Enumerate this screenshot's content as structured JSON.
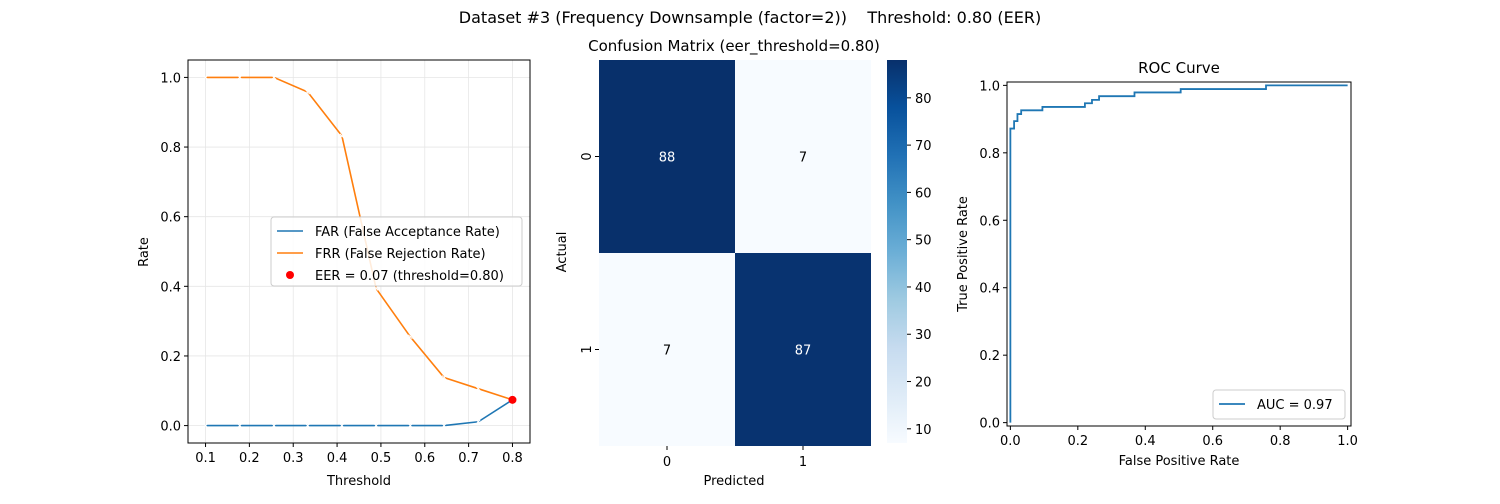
{
  "suptitle": "Dataset #3 (Frequency Downsample (factor=2))    Threshold: 0.80 (EER)",
  "chart_data": [
    {
      "type": "line",
      "title": "",
      "xlabel": "Threshold",
      "ylabel": "Rate",
      "xlim": [
        0.06,
        0.84
      ],
      "ylim": [
        -0.05,
        1.05
      ],
      "xticks": [
        "0.1",
        "0.2",
        "0.3",
        "0.4",
        "0.5",
        "0.6",
        "0.7",
        "0.8"
      ],
      "yticks": [
        "0.0",
        "0.2",
        "0.4",
        "0.6",
        "0.8",
        "1.0"
      ],
      "grid": true,
      "legend_position": "center-right",
      "x": [
        0.1,
        0.178,
        0.256,
        0.333,
        0.411,
        0.489,
        0.567,
        0.644,
        0.722,
        0.8
      ],
      "series": [
        {
          "name": "FAR (False Acceptance Rate)",
          "color": "#1f77b4",
          "marker": "x",
          "values": [
            0.0,
            0.0,
            0.0,
            0.0,
            0.0,
            0.0,
            0.0,
            0.0,
            0.011,
            0.074
          ]
        },
        {
          "name": "FRR (False Rejection Rate)",
          "color": "#ff7f0e",
          "marker": "x",
          "values": [
            1.0,
            1.0,
            1.0,
            0.958,
            0.832,
            0.394,
            0.255,
            0.138,
            0.106,
            0.074
          ]
        }
      ],
      "points": [
        {
          "name": "EER = 0.07 (threshold=0.80)",
          "x": 0.8,
          "y": 0.074,
          "color": "#ff0000"
        }
      ]
    },
    {
      "type": "heatmap",
      "title": "Confusion Matrix (eer_threshold=0.80)",
      "xlabel": "Predicted",
      "ylabel": "Actual",
      "x_categories": [
        "0",
        "1"
      ],
      "y_categories": [
        "0",
        "1"
      ],
      "values": [
        [
          88,
          7
        ],
        [
          7,
          87
        ]
      ],
      "colormap": "Blues",
      "vmin": 7,
      "vmax": 88,
      "colorbar_ticks": [
        "10",
        "20",
        "30",
        "40",
        "50",
        "60",
        "70",
        "80"
      ]
    },
    {
      "type": "line",
      "title": "ROC Curve",
      "xlabel": "False Positive Rate",
      "ylabel": "True Positive Rate",
      "xlim": [
        -0.01,
        1.01
      ],
      "ylim": [
        -0.01,
        1.01
      ],
      "xticks": [
        "0.0",
        "0.2",
        "0.4",
        "0.6",
        "0.8",
        "1.0"
      ],
      "yticks": [
        "0.0",
        "0.2",
        "0.4",
        "0.6",
        "0.8",
        "1.0"
      ],
      "grid": false,
      "legend_position": "bottom-right",
      "series": [
        {
          "name": "AUC = 0.97",
          "color": "#1f77b4",
          "fpr": [
            0,
            0,
            0.011,
            0.011,
            0.021,
            0.021,
            0.032,
            0.032,
            0.095,
            0.095,
            0.221,
            0.221,
            0.242,
            0.242,
            0.263,
            0.263,
            0.368,
            0.368,
            0.505,
            0.505,
            0.758,
            0.758,
            1.0
          ],
          "tpr": [
            0,
            0.872,
            0.872,
            0.894,
            0.894,
            0.915,
            0.915,
            0.926,
            0.926,
            0.936,
            0.936,
            0.947,
            0.947,
            0.957,
            0.957,
            0.968,
            0.968,
            0.979,
            0.979,
            0.989,
            0.989,
            1.0,
            1.0
          ]
        }
      ]
    }
  ]
}
